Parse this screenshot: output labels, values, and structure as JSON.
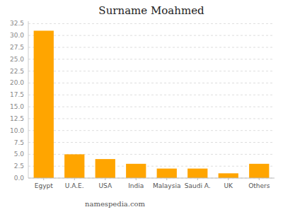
{
  "chart_data": {
    "type": "bar",
    "title": "Surname Moahmed",
    "categories": [
      "Egypt",
      "U.A.E.",
      "USA",
      "India",
      "Malaysia",
      "Saudi A.",
      "UK",
      "Others"
    ],
    "values": [
      31.0,
      5.0,
      4.0,
      3.0,
      2.0,
      2.0,
      1.0,
      3.0
    ],
    "color": "#FFA500",
    "ylim": [
      0,
      33
    ],
    "yticks": [
      {
        "value": 0,
        "label": "0.0"
      },
      2.5,
      {
        "value": 5,
        "label": "5.0"
      },
      7.5,
      {
        "value": 10,
        "label": "10.0"
      },
      12.5,
      {
        "value": 15,
        "label": "15.0"
      },
      17.5,
      {
        "value": 20,
        "label": "20.0"
      },
      22.5,
      {
        "value": 25,
        "label": "25.0"
      },
      27.5,
      {
        "value": 30,
        "label": "30.0"
      },
      32.5
    ],
    "grid": true,
    "annotations": [
      "namespedia.com"
    ]
  }
}
